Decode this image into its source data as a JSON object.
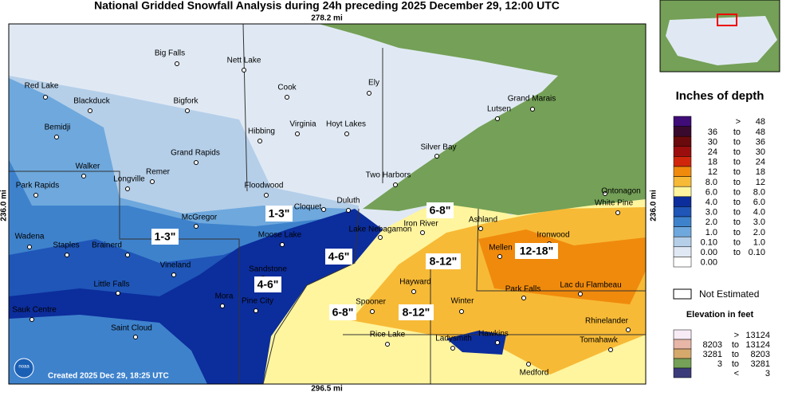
{
  "title": "National Gridded Snowfall Analysis during 24h preceding 2025 December 29, 12:00 UTC",
  "scale": {
    "top": "278.2 mi",
    "bottom": "296.5 mi",
    "left": "236.0 mi",
    "right": "236.0 mi"
  },
  "created": "Created 2025 Dec 29, 18:25 UTC",
  "logo": "noaa",
  "cities": [
    "Big Falls",
    "Nett Lake",
    "Red Lake",
    "Cook",
    "Ely",
    "Blackduck",
    "Bigfork",
    "Grand Marais",
    "Lutsen",
    "Bemidji",
    "Virginia",
    "Hoyt Lakes",
    "Hibbing",
    "Silver Bay",
    "Grand Rapids",
    "Walker",
    "Remer",
    "Two Harbors",
    "Longville",
    "Floodwood",
    "Park Rapids",
    "Ontonagon",
    "Duluth",
    "Cloquet",
    "White Pine",
    "McGregor",
    "Ashland",
    "Iron River",
    "Lake Nebagamon",
    "Wadena",
    "Ironwood",
    "Moose Lake",
    "Brainerd",
    "Staples",
    "Mellen",
    "Vineland",
    "Sandstone",
    "Hayward",
    "Little Falls",
    "Park Falls",
    "Lac du Flambeau",
    "Mora",
    "Pine City",
    "Spooner",
    "Winter",
    "Sauk Centre",
    "Rhinelander",
    "Saint Cloud",
    "Hawkins",
    "Rice Lake",
    "Ladysmith",
    "Tomahawk",
    "Medford"
  ],
  "annotations": [
    "1-3\"",
    "1-3\"",
    "4-6\"",
    "4-6\"",
    "6-8\"",
    "6-8\"",
    "8-12\"",
    "8-12\"",
    "12-18\""
  ],
  "depth_legend": {
    "title": "Inches of depth",
    "rows": [
      {
        "color": "#3f0c78",
        "texts": [
          ">",
          "48"
        ]
      },
      {
        "color": "#3a0a2e",
        "texts": [
          "36",
          "to",
          "48"
        ]
      },
      {
        "color": "#6a0a0c",
        "texts": [
          "30",
          "to",
          "36"
        ]
      },
      {
        "color": "#9c0e0e",
        "texts": [
          "24",
          "to",
          "30"
        ]
      },
      {
        "color": "#d0270c",
        "texts": [
          "18",
          "to",
          "24"
        ]
      },
      {
        "color": "#f08a0c",
        "texts": [
          "12",
          "to",
          "18"
        ]
      },
      {
        "color": "#f7ba36",
        "texts": [
          "8.0",
          "to",
          "12"
        ]
      },
      {
        "color": "#fff59e",
        "texts": [
          "6.0",
          "to",
          "8.0"
        ]
      },
      {
        "color": "#0c2d9c",
        "texts": [
          "4.0",
          "to",
          "6.0"
        ]
      },
      {
        "color": "#1f56b8",
        "texts": [
          "3.0",
          "to",
          "4.0"
        ]
      },
      {
        "color": "#3e82cc",
        "texts": [
          "2.0",
          "to",
          "3.0"
        ]
      },
      {
        "color": "#6ea8dd",
        "texts": [
          "1.0",
          "to",
          "2.0"
        ]
      },
      {
        "color": "#b5cfe9",
        "texts": [
          "0.10",
          "to",
          "1.0"
        ]
      },
      {
        "color": "#e0e9f3",
        "texts": [
          "0.00",
          "to",
          "0.10"
        ]
      },
      {
        "color": "#ffffff",
        "texts": [
          "0.00"
        ]
      }
    ]
  },
  "not_estimated": "Not Estimated",
  "elevation_legend": {
    "title": "Elevation in feet",
    "rows": [
      {
        "color": "#f7ebf5",
        "texts": [
          ">",
          "13124"
        ]
      },
      {
        "color": "#e7b6a6",
        "texts": [
          "8203",
          "to",
          "13124"
        ]
      },
      {
        "color": "#d5a96c",
        "texts": [
          "3281",
          "to",
          "8203"
        ]
      },
      {
        "color": "#74a057",
        "texts": [
          "3",
          "to",
          "3281"
        ]
      },
      {
        "color": "#3b3b7c",
        "texts": [
          "<",
          "3"
        ]
      }
    ]
  }
}
